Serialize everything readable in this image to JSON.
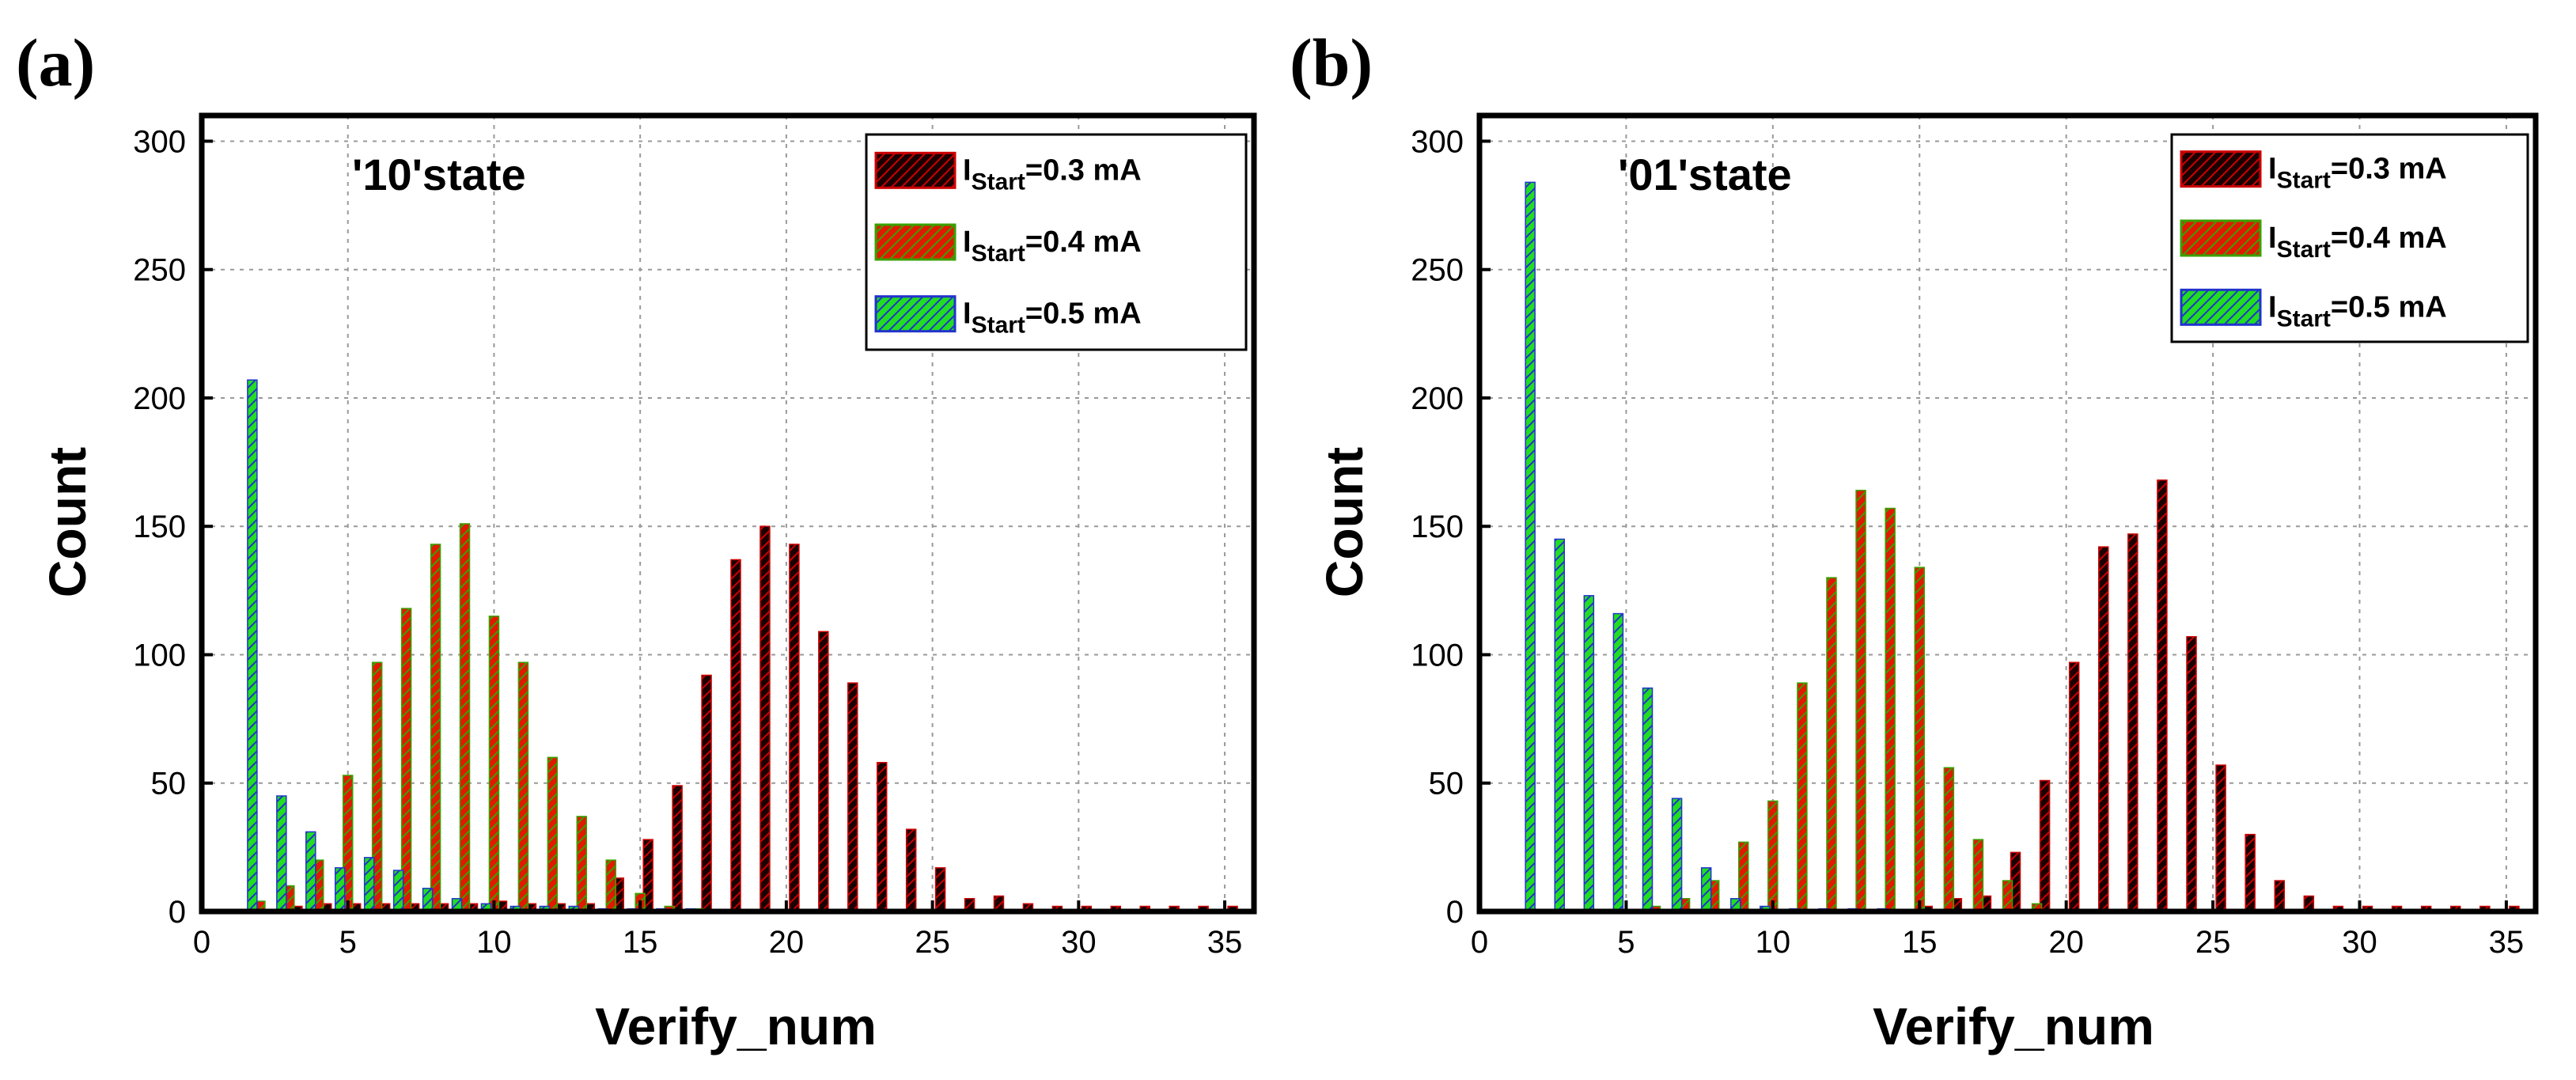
{
  "figure": {
    "patterns": {
      "black": {
        "fill": "#1a0000",
        "stroke": "#cc0000"
      },
      "red": {
        "fill": "#e01a00",
        "stroke": "#3aa000"
      },
      "green": {
        "fill": "#22dd22",
        "stroke": "#2233cc"
      }
    }
  },
  "chart_data": [
    {
      "type": "bar",
      "panel_label": "(a)",
      "state_label": "'10'state",
      "xlabel": "Verify_num",
      "ylabel": "Count",
      "xlim": [
        0,
        36
      ],
      "ylim": [
        0,
        310
      ],
      "xticks": [
        0,
        5,
        10,
        15,
        20,
        25,
        30,
        35
      ],
      "yticks": [
        0,
        50,
        100,
        150,
        200,
        250,
        300
      ],
      "grid": true,
      "legend_position": "top-right",
      "legend_prefix": "I",
      "legend_subscript": "Start",
      "series": [
        {
          "name": "IStart=0.3 mA",
          "label_value": "=0.3 mA",
          "pattern": "black",
          "x": [
            3,
            4,
            5,
            6,
            7,
            8,
            9,
            10,
            11,
            12,
            13,
            14,
            15,
            16,
            17,
            18,
            19,
            20,
            21,
            22,
            23,
            24,
            25,
            26,
            27,
            28,
            29,
            30,
            31,
            32,
            33,
            34,
            35
          ],
          "values": [
            2,
            3,
            3,
            3,
            3,
            3,
            3,
            4,
            3,
            3,
            3,
            13,
            28,
            49,
            92,
            137,
            150,
            143,
            109,
            89,
            58,
            32,
            17,
            5,
            6,
            3,
            2,
            2,
            2,
            2,
            2,
            2,
            2
          ]
        },
        {
          "name": "IStart=0.4 mA",
          "label_value": "=0.4 mA",
          "pattern": "red",
          "x": [
            2,
            3,
            4,
            5,
            6,
            7,
            8,
            9,
            10,
            11,
            12,
            13,
            14,
            15,
            16,
            17
          ],
          "values": [
            4,
            10,
            20,
            53,
            97,
            118,
            143,
            151,
            115,
            97,
            60,
            37,
            20,
            7,
            2,
            1
          ]
        },
        {
          "name": "IStart=0.5 mA",
          "label_value": "=0.5 mA",
          "pattern": "green",
          "x": [
            2,
            3,
            4,
            5,
            6,
            7,
            8,
            9,
            10,
            11,
            12,
            13,
            14,
            15,
            16,
            17
          ],
          "values": [
            207,
            45,
            31,
            17,
            21,
            16,
            9,
            5,
            3,
            2,
            2,
            2,
            1,
            1,
            1,
            1
          ]
        }
      ]
    },
    {
      "type": "bar",
      "panel_label": "(b)",
      "state_label": "'01'state",
      "xlabel": "Verify_num",
      "ylabel": "Count",
      "xlim": [
        0,
        36
      ],
      "ylim": [
        0,
        310
      ],
      "xticks": [
        0,
        5,
        10,
        15,
        20,
        25,
        30,
        35
      ],
      "yticks": [
        0,
        50,
        100,
        150,
        200,
        250,
        300
      ],
      "grid": true,
      "legend_position": "top-right",
      "legend_prefix": "I",
      "legend_subscript": "Start",
      "series": [
        {
          "name": "IStart=0.3 mA",
          "label_value": "=0.3 mA",
          "pattern": "black",
          "x": [
            15,
            16,
            17,
            18,
            19,
            20,
            21,
            22,
            23,
            24,
            25,
            26,
            27,
            28,
            29,
            30,
            31,
            32,
            33,
            34,
            35
          ],
          "values": [
            2,
            5,
            6,
            23,
            51,
            97,
            142,
            147,
            168,
            107,
            57,
            30,
            12,
            6,
            2,
            2,
            2,
            2,
            2,
            2,
            2
          ]
        },
        {
          "name": "IStart=0.4 mA",
          "label_value": "=0.4 mA",
          "pattern": "red",
          "x": [
            6,
            7,
            8,
            9,
            10,
            11,
            12,
            13,
            14,
            15,
            16,
            17,
            18,
            19
          ],
          "values": [
            2,
            5,
            12,
            27,
            43,
            89,
            130,
            164,
            157,
            134,
            56,
            28,
            12,
            3
          ]
        },
        {
          "name": "IStart=0.5 mA",
          "label_value": "=0.5 mA",
          "pattern": "green",
          "x": [
            2,
            3,
            4,
            5,
            6,
            7,
            8,
            9,
            10,
            11,
            12,
            13,
            14
          ],
          "values": [
            284,
            145,
            123,
            116,
            87,
            44,
            17,
            5,
            2,
            1,
            1,
            1,
            1
          ]
        }
      ]
    }
  ]
}
